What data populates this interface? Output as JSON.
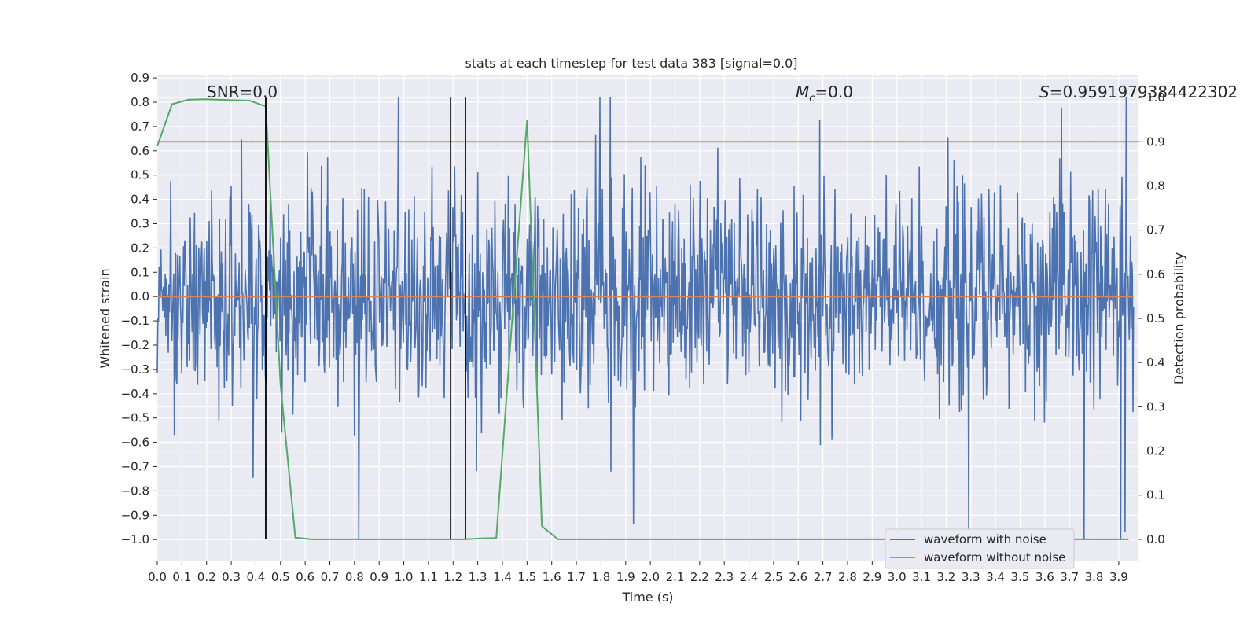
{
  "chart_data": {
    "type": "line",
    "title": "stats at each timestep for test data 383 [signal=0.0]",
    "xlabel": "Time (s)",
    "ylabel": "Whitened strain",
    "y2label": "Detection probability",
    "xlim": [
      0.0,
      3.98
    ],
    "ylim": [
      -1.09,
      0.91
    ],
    "y2lim": [
      -0.05,
      1.05
    ],
    "xticks": [
      "0.0",
      "0.1",
      "0.2",
      "0.3",
      "0.4",
      "0.5",
      "0.6",
      "0.7",
      "0.8",
      "0.9",
      "1.0",
      "1.1",
      "1.2",
      "1.3",
      "1.4",
      "1.5",
      "1.6",
      "1.7",
      "1.8",
      "1.9",
      "2.0",
      "2.1",
      "2.2",
      "2.3",
      "2.4",
      "2.5",
      "2.6",
      "2.7",
      "2.8",
      "2.9",
      "3.0",
      "3.1",
      "3.2",
      "3.3",
      "3.4",
      "3.5",
      "3.6",
      "3.7",
      "3.8",
      "3.9"
    ],
    "yticks": [
      "0.9",
      "0.8",
      "0.7",
      "0.6",
      "0.5",
      "0.4",
      "0.3",
      "0.2",
      "0.1",
      "0.0",
      "−0.1",
      "−0.2",
      "−0.3",
      "−0.4",
      "−0.5",
      "−0.6",
      "−0.7",
      "−0.8",
      "−0.9",
      "−1.0"
    ],
    "y2ticks": [
      "1.0",
      "0.9",
      "0.8",
      "0.7",
      "0.6",
      "0.5",
      "0.4",
      "0.3",
      "0.2",
      "0.1",
      "0.0"
    ],
    "grid": true,
    "legend_position": "lower-right",
    "annotations": {
      "snr": "SNR=0.0",
      "mc_symbol": "M",
      "mc_sub": "c",
      "mc_value": "=0.0",
      "s_symbol": "S",
      "s_value": "=0.9591979384422302"
    },
    "series": [
      {
        "name": "waveform with noise",
        "color": "#4c72b0",
        "description_values": "dense noise spanning approximately -1.0 to 0.82",
        "seed": 383,
        "npoints": 1600
      },
      {
        "name": "waveform without noise",
        "color": "#dd8452",
        "values": [
          0.0,
          0.0
        ]
      }
    ],
    "detection_probability": {
      "color": "#55a868",
      "x": [
        0.0,
        0.06,
        0.125,
        0.19,
        0.25,
        0.31,
        0.375,
        0.44,
        0.5,
        0.56,
        0.625,
        0.69,
        0.75,
        0.81,
        0.875,
        0.94,
        1.0,
        1.06,
        1.125,
        1.19,
        1.25,
        1.31,
        1.375,
        1.44,
        1.5,
        1.56,
        1.625,
        1.69,
        1.75,
        1.81,
        1.875,
        1.94,
        2.0,
        2.06,
        2.125,
        2.19,
        2.25,
        2.31,
        2.375,
        2.44,
        2.5,
        2.56,
        2.625,
        2.69,
        2.75,
        2.81,
        2.875,
        2.94,
        3.0,
        3.06,
        3.125,
        3.19,
        3.25,
        3.31,
        3.375,
        3.44,
        3.5,
        3.56,
        3.625,
        3.69,
        3.75,
        3.81,
        3.875,
        3.94
      ],
      "y": [
        0.89,
        0.985,
        0.995,
        0.996,
        0.995,
        0.994,
        0.993,
        0.98,
        0.35,
        0.004,
        0.0,
        0.0,
        0.0,
        0.0,
        0.0,
        0.0,
        0.0,
        0.0,
        0.0,
        0.0,
        0.0,
        0.002,
        0.003,
        0.5,
        0.95,
        0.03,
        0.0,
        0.0,
        0.0,
        0.0,
        0.0,
        0.0,
        0.0,
        0.0,
        0.0,
        0.0,
        0.0,
        0.0,
        0.0,
        0.0,
        0.0,
        0.0,
        0.0,
        0.0,
        0.0,
        0.0,
        0.0,
        0.0,
        0.0,
        0.0,
        0.0,
        0.0,
        0.0,
        0.0,
        0.0,
        0.0,
        0.0,
        0.0,
        0.0,
        0.0,
        0.0,
        0.0,
        0.0,
        0.0
      ]
    },
    "threshold": {
      "color": "#c44e52",
      "value": 0.9
    },
    "vertical_markers": {
      "color": "#000000",
      "x": [
        0.44,
        1.19,
        1.25
      ]
    }
  }
}
